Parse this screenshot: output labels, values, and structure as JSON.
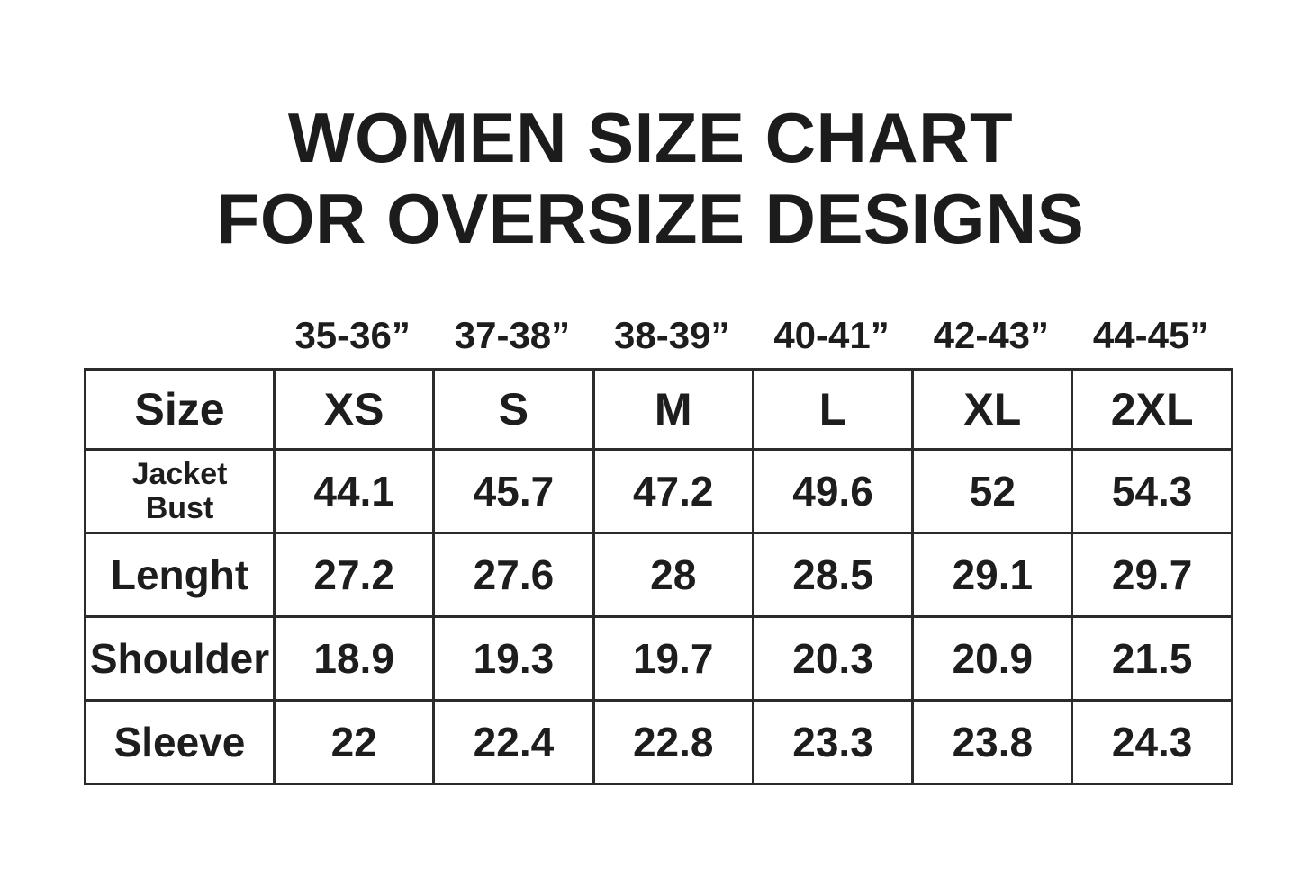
{
  "page": {
    "background_color": "#ffffff",
    "text_color": "#1d1d1d",
    "border_color": "#2b2b2b"
  },
  "title": {
    "line1": "WOMEN SIZE CHART",
    "line2": "FOR OVERSIZE DESIGNS"
  },
  "size_chart": {
    "bust_row": [
      "35-36”",
      "37-38”",
      "38-39”",
      "40-41”",
      "42-43”",
      "44-45”"
    ],
    "header": [
      "Size",
      "XS",
      "S",
      "M",
      "L",
      "XL",
      "2XL"
    ],
    "rows": [
      {
        "label": "Jacket Bust",
        "label_lines": [
          "Jacket",
          "Bust"
        ],
        "values": [
          "44.1",
          "45.7",
          "47.2",
          "49.6",
          "52",
          "54.3"
        ]
      },
      {
        "label": "Lenght",
        "values": [
          "27.2",
          "27.6",
          "28",
          "28.5",
          "29.1",
          "29.7"
        ]
      },
      {
        "label": "Shoulder",
        "values": [
          "18.9",
          "19.3",
          "19.7",
          "20.3",
          "20.9",
          "21.5"
        ]
      },
      {
        "label": "Sleeve",
        "values": [
          "22",
          "22.4",
          "22.8",
          "23.3",
          "23.8",
          "24.3"
        ]
      }
    ]
  },
  "chart_data": {
    "type": "table",
    "title": "WOMEN SIZE CHART FOR OVERSIZE DESIGNS",
    "columns": [
      "Size",
      "XS",
      "S",
      "M",
      "L",
      "XL",
      "2XL"
    ],
    "bust_range_inches": [
      "35-36",
      "37-38",
      "38-39",
      "40-41",
      "42-43",
      "44-45"
    ],
    "rows": [
      [
        "Jacket Bust",
        44.1,
        45.7,
        47.2,
        49.6,
        52,
        54.3
      ],
      [
        "Lenght",
        27.2,
        27.6,
        28,
        28.5,
        29.1,
        29.7
      ],
      [
        "Shoulder",
        18.9,
        19.3,
        19.7,
        20.3,
        20.9,
        21.5
      ],
      [
        "Sleeve",
        22,
        22.4,
        22.8,
        23.3,
        23.8,
        24.3
      ]
    ]
  }
}
